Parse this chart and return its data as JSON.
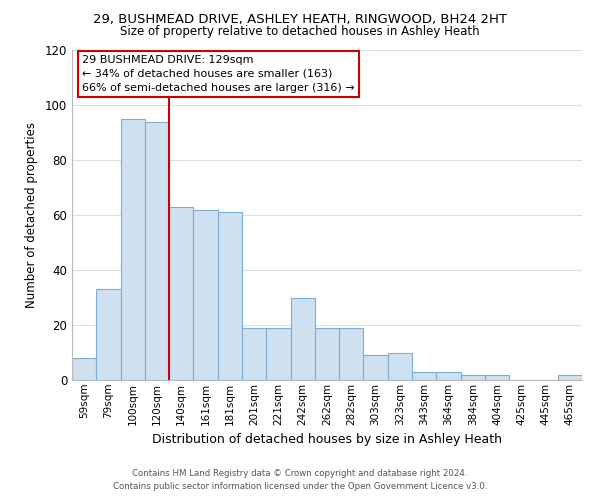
{
  "title": "29, BUSHMEAD DRIVE, ASHLEY HEATH, RINGWOOD, BH24 2HT",
  "subtitle": "Size of property relative to detached houses in Ashley Heath",
  "xlabel": "Distribution of detached houses by size in Ashley Heath",
  "ylabel": "Number of detached properties",
  "bar_labels": [
    "59sqm",
    "79sqm",
    "100sqm",
    "120sqm",
    "140sqm",
    "161sqm",
    "181sqm",
    "201sqm",
    "221sqm",
    "242sqm",
    "262sqm",
    "282sqm",
    "303sqm",
    "323sqm",
    "343sqm",
    "364sqm",
    "384sqm",
    "404sqm",
    "425sqm",
    "445sqm",
    "465sqm"
  ],
  "bar_values": [
    8,
    33,
    95,
    94,
    63,
    62,
    61,
    19,
    19,
    30,
    19,
    19,
    9,
    10,
    3,
    3,
    2,
    2,
    0,
    0,
    2
  ],
  "bar_color": "#cfe0f0",
  "bar_edge_color": "#7aaed6",
  "vline_color": "#cc0000",
  "vline_pos": 3.5,
  "ylim": [
    0,
    120
  ],
  "yticks": [
    0,
    20,
    40,
    60,
    80,
    100,
    120
  ],
  "annotation_title": "29 BUSHMEAD DRIVE: 129sqm",
  "annotation_line1": "← 34% of detached houses are smaller (163)",
  "annotation_line2": "66% of semi-detached houses are larger (316) →",
  "annotation_box_facecolor": "#ffffff",
  "annotation_box_edgecolor": "#cc0000",
  "footer_line1": "Contains HM Land Registry data © Crown copyright and database right 2024.",
  "footer_line2": "Contains public sector information licensed under the Open Government Licence v3.0.",
  "background_color": "#ffffff",
  "grid_color": "#d4dfe8"
}
